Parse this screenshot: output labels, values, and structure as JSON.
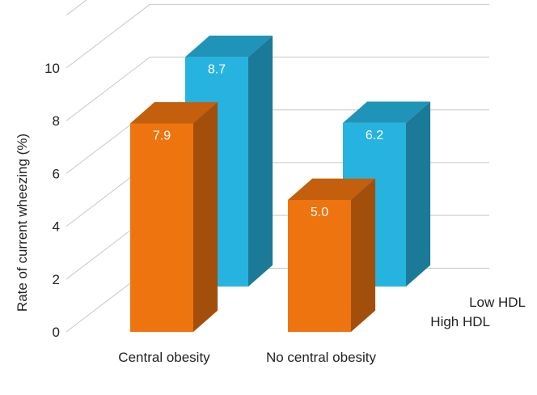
{
  "chart_data": {
    "type": "bar",
    "title": "",
    "xlabel": "",
    "ylabel": "Rate of current wheezing (%)",
    "ylim": [
      0,
      10
    ],
    "yticks": [
      0,
      2,
      4,
      6,
      8,
      10
    ],
    "grid": true,
    "categories": [
      "Central obesity",
      "No central obesity"
    ],
    "series": [
      {
        "name": "High HDL",
        "values": [
          7.9,
          5.0
        ],
        "color": "#ee7410"
      },
      {
        "name": "Low HDL",
        "values": [
          8.7,
          6.2
        ],
        "color": "#27b3e0"
      }
    ],
    "data_labels": true
  }
}
